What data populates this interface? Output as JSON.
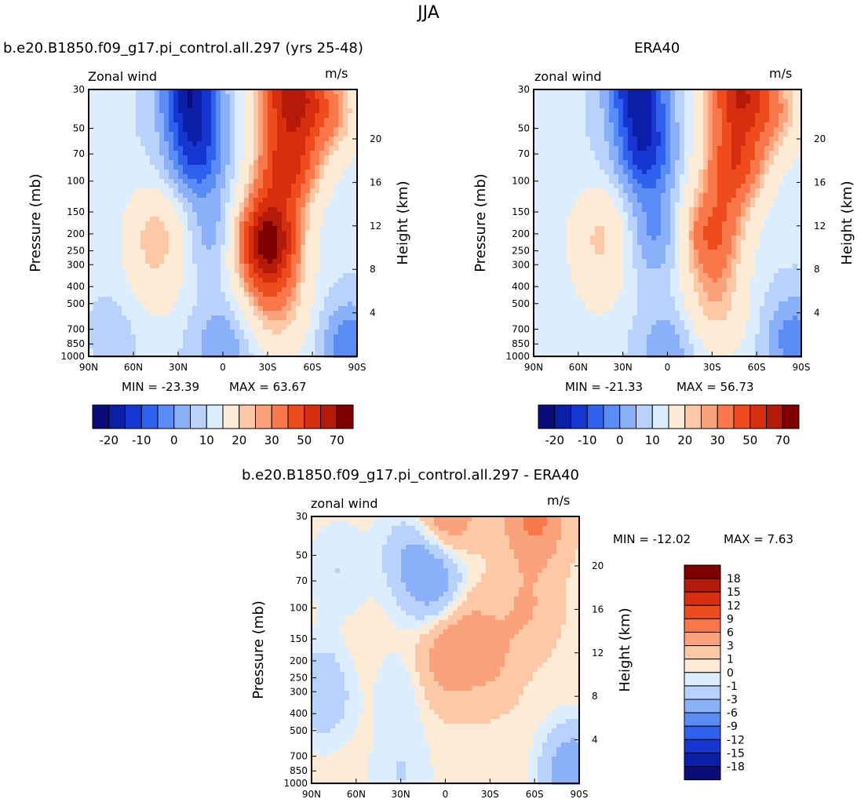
{
  "title": "JJA",
  "colors": {
    "scale": [
      "#0a0c78",
      "#0a1ea8",
      "#1636d2",
      "#2e62ee",
      "#5a8cf6",
      "#8ab0fa",
      "#b8d2fc",
      "#dceefe",
      "#fdebd6",
      "#fcc8a6",
      "#fba27a",
      "#f97748",
      "#ef4c1e",
      "#d72e10",
      "#b41a08",
      "#7e0000"
    ],
    "frame": "#000000"
  },
  "chart_data": [
    {
      "type": "heatmap",
      "name": "model",
      "title": "b.e20.B1850.f09_g17.pi_control.all.297 (yrs 25-48)",
      "left_label": "Zonal wind",
      "right_label": "m/s",
      "ylabel": "Pressure (mb)",
      "y2label": "Height (km)",
      "xticks": [
        "90N",
        "60N",
        "30N",
        "0",
        "30S",
        "60S",
        "90S"
      ],
      "yticks": [
        30,
        50,
        70,
        100,
        150,
        200,
        250,
        300,
        400,
        500,
        700,
        850,
        1000
      ],
      "y2ticks": [
        4,
        8,
        12,
        16,
        20
      ],
      "min_label": "MIN = -23.39",
      "max_label": "MAX = 63.67",
      "min": -23.39,
      "max": 63.67,
      "colorbar_labels": [
        "-20",
        "-10",
        "0",
        "10",
        "20",
        "30",
        "50",
        "70"
      ],
      "features": [
        {
          "lat": -45,
          "p": 30,
          "value": 60
        },
        {
          "lat": -43,
          "p": 80,
          "value": 52
        },
        {
          "lat": -30,
          "p": 200,
          "value": 45
        },
        {
          "lat": -30,
          "p": 250,
          "value": 38
        },
        {
          "lat": -35,
          "p": 500,
          "value": 24
        },
        {
          "lat": -50,
          "p": 900,
          "value": 8
        },
        {
          "lat": 45,
          "p": 200,
          "value": 22
        },
        {
          "lat": 45,
          "p": 400,
          "value": 12
        },
        {
          "lat": 22,
          "p": 30,
          "value": -22
        },
        {
          "lat": 18,
          "p": 70,
          "value": -15
        },
        {
          "lat": 5,
          "p": 200,
          "value": -3
        },
        {
          "lat": 0,
          "p": 900,
          "value": -5
        },
        {
          "lat": 80,
          "p": 60,
          "value": 5
        },
        {
          "lat": 70,
          "p": 700,
          "value": 3
        },
        {
          "lat": -85,
          "p": 900,
          "value": -10
        },
        {
          "lat": -70,
          "p": 40,
          "value": 30
        }
      ]
    },
    {
      "type": "heatmap",
      "name": "obs",
      "title": "ERA40",
      "left_label": "zonal wind",
      "right_label": "m/s",
      "ylabel": "Pressure (mb)",
      "y2label": "Height (km)",
      "xticks": [
        "90N",
        "60N",
        "30N",
        "0",
        "30S",
        "60S",
        "90S"
      ],
      "yticks": [
        30,
        50,
        70,
        100,
        150,
        200,
        250,
        300,
        400,
        500,
        700,
        850,
        1000
      ],
      "y2ticks": [
        4,
        8,
        12,
        16,
        20
      ],
      "min_label": "MIN = -21.33",
      "max_label": "MAX = 56.73",
      "min": -21.33,
      "max": 56.73,
      "colorbar_labels": [
        "-20",
        "-10",
        "0",
        "10",
        "20",
        "30",
        "50",
        "70"
      ],
      "features": [
        {
          "lat": -48,
          "p": 30,
          "value": 55
        },
        {
          "lat": -45,
          "p": 80,
          "value": 45
        },
        {
          "lat": -30,
          "p": 200,
          "value": 40
        },
        {
          "lat": -32,
          "p": 500,
          "value": 22
        },
        {
          "lat": -50,
          "p": 900,
          "value": 7
        },
        {
          "lat": 45,
          "p": 200,
          "value": 20
        },
        {
          "lat": 45,
          "p": 400,
          "value": 11
        },
        {
          "lat": 20,
          "p": 30,
          "value": -21
        },
        {
          "lat": 15,
          "p": 70,
          "value": -16
        },
        {
          "lat": 8,
          "p": 200,
          "value": -6
        },
        {
          "lat": 0,
          "p": 900,
          "value": -4
        },
        {
          "lat": 80,
          "p": 70,
          "value": 5
        },
        {
          "lat": -85,
          "p": 800,
          "value": -8
        },
        {
          "lat": -72,
          "p": 40,
          "value": 25
        }
      ]
    },
    {
      "type": "heatmap",
      "name": "diff",
      "title": "b.e20.B1850.f09_g17.pi_control.all.297 - ERA40",
      "left_label": "zonal wind",
      "right_label": "m/s",
      "ylabel": "Pressure (mb)",
      "y2label": "Height (km)",
      "xticks": [
        "90N",
        "60N",
        "30N",
        "0",
        "30S",
        "60S",
        "90S"
      ],
      "yticks": [
        30,
        50,
        70,
        100,
        150,
        200,
        250,
        300,
        400,
        500,
        700,
        850,
        1000
      ],
      "y2ticks": [
        4,
        8,
        12,
        16,
        20
      ],
      "min_label": "MIN = -12.02",
      "max_label": "MAX =    7.63",
      "min": -12.02,
      "max": 7.63,
      "colorbar_labels": [
        "18",
        "15",
        "12",
        "9",
        "6",
        "3",
        "1",
        "0",
        "-1",
        "-3",
        "-6",
        "-9",
        "-12",
        "-15",
        "-18"
      ],
      "features": [
        {
          "lat": 0,
          "p": 30,
          "value": 6
        },
        {
          "lat": -60,
          "p": 30,
          "value": 7
        },
        {
          "lat": -55,
          "p": 100,
          "value": 3
        },
        {
          "lat": 0,
          "p": 200,
          "value": 4
        },
        {
          "lat": -30,
          "p": 200,
          "value": 3
        },
        {
          "lat": -12,
          "p": 120,
          "value": 3
        },
        {
          "lat": 60,
          "p": 250,
          "value": 1
        },
        {
          "lat": 22,
          "p": 50,
          "value": -3
        },
        {
          "lat": 5,
          "p": 70,
          "value": -5
        },
        {
          "lat": 82,
          "p": 300,
          "value": -3
        },
        {
          "lat": 30,
          "p": 300,
          "value": -1
        },
        {
          "lat": 30,
          "p": 900,
          "value": -1
        },
        {
          "lat": -86,
          "p": 900,
          "value": -6
        },
        {
          "lat": 72,
          "p": 60,
          "value": -1
        }
      ]
    }
  ]
}
